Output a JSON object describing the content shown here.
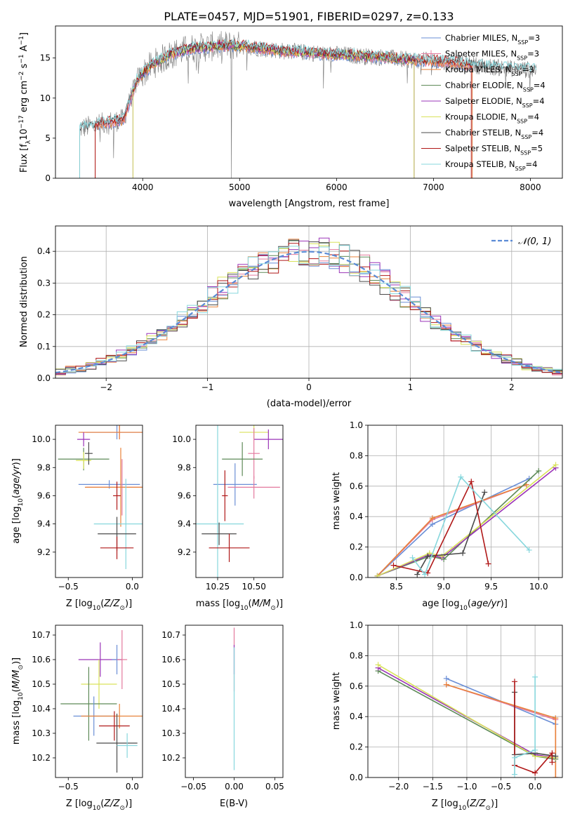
{
  "title": "PLATE=0457, MJD=51901, FIBERID=0297, z=0.133",
  "colors": {
    "chabrier_miles": "#6a8ed6",
    "salpeter_miles": "#e3799d",
    "kroupa_miles": "#e8823a",
    "chabrier_elodie": "#5e8a58",
    "salpeter_elodie": "#9b35b8",
    "kroupa_elodie": "#d9e25a",
    "chabrier_stelib": "#4a4a4a",
    "salpeter_stelib": "#b01818",
    "kroupa_stelib": "#87d7dd",
    "data": "#7a7a7a",
    "gaussian": "#5b8bd6",
    "grid": "#b0b0b0"
  },
  "chart_data": [
    {
      "id": "spectrum",
      "type": "line",
      "xlabel": "wavelength [Angstrom, rest frame]",
      "ylabel": "Flux [f",
      "xlim": [
        3100,
        8330
      ],
      "ylim": [
        0,
        19
      ],
      "xticks": [
        4000,
        5000,
        6000,
        7000,
        8000
      ],
      "yticks": [
        0,
        5,
        10,
        15
      ],
      "grid": false,
      "legend_position": "upper-right",
      "legend": [
        {
          "name": "Chabrier MILES, N",
          "n": "3"
        },
        {
          "name": "Salpeter MILES, N",
          "n": "3"
        },
        {
          "name": "Kroupa MILES, N",
          "n": "3"
        },
        {
          "name": "Chabrier ELODIE, N",
          "n": "4"
        },
        {
          "name": "Salpeter ELODIE, N",
          "n": "4"
        },
        {
          "name": "Kroupa ELODIE, N",
          "n": "4"
        },
        {
          "name": "Chabrier STELIB, N",
          "n": "4"
        },
        {
          "name": "Salpeter STELIB, N",
          "n": "5"
        },
        {
          "name": "Kroupa STELIB, N",
          "n": "4"
        }
      ],
      "continuum": {
        "x": [
          3350,
          3500,
          3650,
          3800,
          3950,
          4100,
          4300,
          4500,
          4700,
          4900,
          5100,
          5300,
          5500,
          5700,
          5900,
          6100,
          6300,
          6500,
          6700,
          6900,
          7100,
          7300,
          7500,
          7700,
          7900,
          8050
        ],
        "y": [
          6.2,
          6.6,
          7.0,
          7.3,
          12.5,
          14.2,
          15.5,
          16.2,
          16.4,
          16.6,
          16.4,
          16.1,
          15.8,
          15.7,
          15.5,
          15.4,
          15.2,
          15.1,
          14.8,
          14.7,
          14.6,
          14.3,
          14.0,
          13.8,
          13.6,
          13.5
        ]
      }
    },
    {
      "id": "residuals",
      "type": "bar",
      "xlabel": "(data-model)/error",
      "ylabel": "Normed distribution",
      "xlim": [
        -2.5,
        2.5
      ],
      "ylim": [
        0,
        0.48
      ],
      "xticks": [
        -2,
        -1,
        0,
        1,
        2
      ],
      "yticks": [
        0.0,
        0.1,
        0.2,
        0.3,
        0.4
      ],
      "grid": true,
      "legend": "𝒩(0, 1)",
      "legend_position": "upper-right",
      "bin_width": 0.1
    },
    {
      "id": "age-vs-Z",
      "type": "errorbar",
      "xlabel": "Z [log",
      "ylabel": "age  [log",
      "xlim": [
        -0.6,
        0.08
      ],
      "ylim": [
        9.02,
        10.1
      ],
      "xticks": [
        -0.5,
        0.0
      ],
      "yticks": [
        9.2,
        9.4,
        9.6,
        9.8,
        10.0
      ],
      "points": [
        {
          "model": "chabrier_miles",
          "x": -0.12,
          "y": 10.05,
          "xerr": 0.24,
          "yerr": 0.05
        },
        {
          "model": "salpeter_miles",
          "x": -0.1,
          "y": 10.05,
          "xerr": 0.3,
          "yerr": 0.05
        },
        {
          "model": "kroupa_miles",
          "x": -0.1,
          "y": 10.05,
          "xerr": 0.32,
          "yerr": 0.05
        },
        {
          "model": "chabrier_elodie",
          "x": -0.38,
          "y": 9.86,
          "xerr": 0.2,
          "yerr": 0.08
        },
        {
          "model": "salpeter_elodie",
          "x": -0.38,
          "y": 10.0,
          "xerr": 0.05,
          "yerr": 0.05
        },
        {
          "model": "kroupa_elodie",
          "x": -0.38,
          "y": 9.85,
          "xerr": 0.06,
          "yerr": 0.06
        },
        {
          "model": "chabrier_stelib",
          "x": -0.34,
          "y": 9.9,
          "xerr": 0.03,
          "yerr": 0.08
        },
        {
          "model": "chabrier_miles",
          "x": -0.18,
          "y": 9.68,
          "xerr": 0.24,
          "yerr": 0.03
        },
        {
          "model": "salpeter_miles",
          "x": -0.08,
          "y": 9.66,
          "xerr": 0.28,
          "yerr": 0.2
        },
        {
          "model": "kroupa_miles",
          "x": -0.09,
          "y": 9.66,
          "xerr": 0.28,
          "yerr": 0.28
        },
        {
          "model": "salpeter_stelib",
          "x": -0.12,
          "y": 9.6,
          "xerr": 0.03,
          "yerr": 0.1
        },
        {
          "model": "kroupa_stelib",
          "x": -0.05,
          "y": 9.4,
          "xerr": 0.25,
          "yerr": 0.32
        },
        {
          "model": "chabrier_stelib",
          "x": -0.12,
          "y": 9.33,
          "xerr": 0.15,
          "yerr": 0.12
        },
        {
          "model": "salpeter_stelib",
          "x": -0.12,
          "y": 9.23,
          "xerr": 0.13,
          "yerr": 0.08
        }
      ]
    },
    {
      "id": "age-vs-mass",
      "type": "errorbar",
      "xlabel": "mass [log",
      "ylabel": "",
      "xlim": [
        10.1,
        10.7
      ],
      "ylim": [
        9.02,
        10.1
      ],
      "xticks": [
        10.25,
        10.5
      ],
      "xtick_labels": [
        "10.25",
        "10.50"
      ],
      "yticks": [
        9.2,
        9.4,
        9.6,
        9.8,
        10.0
      ],
      "points": [
        {
          "model": "kroupa_elodie",
          "x": 10.5,
          "y": 10.05,
          "xerr": 0.1,
          "yerr": 0.05
        },
        {
          "model": "salpeter_elodie",
          "x": 10.6,
          "y": 10.0,
          "xerr": 0.1,
          "yerr": 0.07
        },
        {
          "model": "salpeter_miles",
          "x": 10.5,
          "y": 9.9,
          "xerr": 0.04,
          "yerr": 0.18
        },
        {
          "model": "chabrier_elodie",
          "x": 10.42,
          "y": 9.86,
          "xerr": 0.14,
          "yerr": 0.12
        },
        {
          "model": "chabrier_miles",
          "x": 10.37,
          "y": 9.68,
          "xerr": 0.15,
          "yerr": 0.15
        },
        {
          "model": "salpeter_miles",
          "x": 10.5,
          "y": 9.66,
          "xerr": 0.18,
          "yerr": 0.08
        },
        {
          "model": "salpeter_stelib",
          "x": 10.3,
          "y": 9.6,
          "xerr": 0.02,
          "yerr": 0.18
        },
        {
          "model": "kroupa_stelib",
          "x": 10.25,
          "y": 9.4,
          "xerr": 0.18,
          "yerr": 0.7
        },
        {
          "model": "chabrier_stelib",
          "x": 10.26,
          "y": 9.33,
          "xerr": 0.12,
          "yerr": 0.08
        },
        {
          "model": "salpeter_stelib",
          "x": 10.33,
          "y": 9.23,
          "xerr": 0.14,
          "yerr": 0.1
        }
      ]
    },
    {
      "id": "weight-vs-age",
      "type": "line",
      "xlabel": "age  [log",
      "ylabel": "mass weight",
      "xlim": [
        8.2,
        10.25
      ],
      "ylim": [
        0,
        1.0
      ],
      "xticks": [
        8.5,
        9.0,
        9.5,
        10.0
      ],
      "yticks": [
        0.0,
        0.2,
        0.4,
        0.6,
        0.8,
        1.0
      ],
      "grid": true,
      "series": [
        {
          "model": "chabrier_miles",
          "x": [
            8.3,
            8.88,
            9.9
          ],
          "y": [
            0.01,
            0.35,
            0.65
          ]
        },
        {
          "model": "salpeter_miles",
          "x": [
            8.3,
            8.88,
            9.87
          ],
          "y": [
            0.01,
            0.38,
            0.61
          ]
        },
        {
          "model": "kroupa_miles",
          "x": [
            8.3,
            8.88,
            9.87
          ],
          "y": [
            0.01,
            0.39,
            0.61
          ]
        },
        {
          "model": "chabrier_elodie",
          "x": [
            8.3,
            8.85,
            9.0,
            10.0
          ],
          "y": [
            0.01,
            0.14,
            0.12,
            0.7
          ]
        },
        {
          "model": "salpeter_elodie",
          "x": [
            8.3,
            8.85,
            8.98,
            10.18
          ],
          "y": [
            0.01,
            0.15,
            0.13,
            0.72
          ]
        },
        {
          "model": "kroupa_elodie",
          "x": [
            8.3,
            8.85,
            8.98,
            10.18
          ],
          "y": [
            0.01,
            0.16,
            0.14,
            0.74
          ]
        },
        {
          "model": "chabrier_stelib",
          "x": [
            8.72,
            8.83,
            9.2,
            9.43
          ],
          "y": [
            0.02,
            0.14,
            0.16,
            0.56
          ]
        },
        {
          "model": "salpeter_stelib",
          "x": [
            8.47,
            8.83,
            9.29,
            9.47
          ],
          "y": [
            0.08,
            0.03,
            0.63,
            0.09
          ]
        },
        {
          "model": "kroupa_stelib",
          "x": [
            8.67,
            8.8,
            9.18,
            9.9
          ],
          "y": [
            0.13,
            0.02,
            0.66,
            0.18
          ]
        }
      ]
    },
    {
      "id": "mass-vs-Z",
      "type": "errorbar",
      "xlabel": "Z [log",
      "ylabel": "mass [log",
      "xlim": [
        -0.6,
        0.08
      ],
      "ylim": [
        10.12,
        10.74
      ],
      "xticks": [
        -0.5,
        0.0
      ],
      "yticks": [
        10.2,
        10.3,
        10.4,
        10.5,
        10.6,
        10.7
      ],
      "points": [
        {
          "model": "salpeter_elodie",
          "x": -0.25,
          "y": 10.6,
          "xerr": 0.17,
          "yerr": 0.07
        },
        {
          "model": "chabrier_miles",
          "x": -0.12,
          "y": 10.6,
          "xerr": 0.04,
          "yerr": 0.06
        },
        {
          "model": "salpeter_miles",
          "x": -0.08,
          "y": 10.6,
          "xerr": 0.04,
          "yerr": 0.12
        },
        {
          "model": "kroupa_elodie",
          "x": -0.26,
          "y": 10.5,
          "xerr": 0.14,
          "yerr": 0.1
        },
        {
          "model": "chabrier_elodie",
          "x": -0.34,
          "y": 10.42,
          "xerr": 0.22,
          "yerr": 0.15
        },
        {
          "model": "chabrier_miles",
          "x": -0.3,
          "y": 10.37,
          "xerr": 0.16,
          "yerr": 0.08
        },
        {
          "model": "kroupa_miles",
          "x": -0.1,
          "y": 10.37,
          "xerr": 0.3,
          "yerr": 0.05
        },
        {
          "model": "salpeter_stelib",
          "x": -0.14,
          "y": 10.33,
          "xerr": 0.12,
          "yerr": 0.06
        },
        {
          "model": "chabrier_stelib",
          "x": -0.12,
          "y": 10.26,
          "xerr": 0.16,
          "yerr": 0.12
        },
        {
          "model": "kroupa_stelib",
          "x": -0.04,
          "y": 10.25,
          "xerr": 0.08,
          "yerr": 0.05
        }
      ]
    },
    {
      "id": "mass-vs-EBV",
      "type": "errorbar",
      "xlabel": "E(B-V)",
      "ylabel": "",
      "xlim": [
        -0.06,
        0.06
      ],
      "ylim": [
        10.12,
        10.74
      ],
      "xticks": [
        -0.05,
        0.0,
        0.05
      ],
      "xtick_labels": [
        "−0.05",
        "0.00",
        "0.05"
      ],
      "yticks": [
        10.2,
        10.3,
        10.4,
        10.5,
        10.6,
        10.7
      ],
      "points": [
        {
          "model": "salpeter_miles",
          "x": 0.0,
          "y": 10.6,
          "xerr": 0.0,
          "yerr": 0.13
        },
        {
          "model": "salpeter_elodie",
          "x": 0.0,
          "y": 10.6,
          "xerr": 0.0,
          "yerr": 0.06
        },
        {
          "model": "kroupa_stelib",
          "x": 0.0,
          "y": 10.4,
          "xerr": 0.0,
          "yerr": 0.25
        }
      ]
    },
    {
      "id": "weight-vs-Z",
      "type": "line",
      "xlabel": "Z [log",
      "ylabel": "mass weight",
      "xlim": [
        -2.45,
        0.4
      ],
      "ylim": [
        0,
        1.0
      ],
      "xticks": [
        -2.0,
        -1.5,
        -1.0,
        -0.5,
        0.0
      ],
      "yticks": [
        0.0,
        0.2,
        0.4,
        0.6,
        0.8,
        1.0
      ],
      "grid": true,
      "series": [
        {
          "model": "chabrier_miles",
          "x": [
            -1.3,
            0.3
          ],
          "y": [
            0.65,
            0.35
          ]
        },
        {
          "model": "salpeter_miles",
          "x": [
            -1.3,
            0.3,
            0.3
          ],
          "y": [
            0.61,
            0.38,
            0.0
          ]
        },
        {
          "model": "kroupa_miles",
          "x": [
            -1.3,
            0.3,
            0.3
          ],
          "y": [
            0.61,
            0.39,
            0.0
          ]
        },
        {
          "model": "chabrier_elodie",
          "x": [
            -2.3,
            0.0,
            0.3
          ],
          "y": [
            0.7,
            0.14,
            0.12
          ]
        },
        {
          "model": "salpeter_elodie",
          "x": [
            -2.3,
            0.0,
            0.3
          ],
          "y": [
            0.72,
            0.15,
            0.13
          ]
        },
        {
          "model": "kroupa_elodie",
          "x": [
            -2.3,
            0.0,
            0.3
          ],
          "y": [
            0.74,
            0.14,
            0.13
          ]
        },
        {
          "model": "chabrier_stelib",
          "x": [
            -0.3,
            -0.3,
            0.0,
            0.3
          ],
          "y": [
            0.56,
            0.15,
            0.16,
            0.14
          ]
        },
        {
          "model": "salpeter_stelib",
          "x": [
            -0.3,
            -0.3,
            0.0,
            0.25,
            0.25
          ],
          "y": [
            0.63,
            0.08,
            0.03,
            0.16,
            0.1
          ]
        },
        {
          "model": "kroupa_stelib",
          "x": [
            -0.3,
            -0.3,
            0.0,
            0.0
          ],
          "y": [
            0.02,
            0.13,
            0.18,
            0.66
          ]
        }
      ]
    }
  ]
}
